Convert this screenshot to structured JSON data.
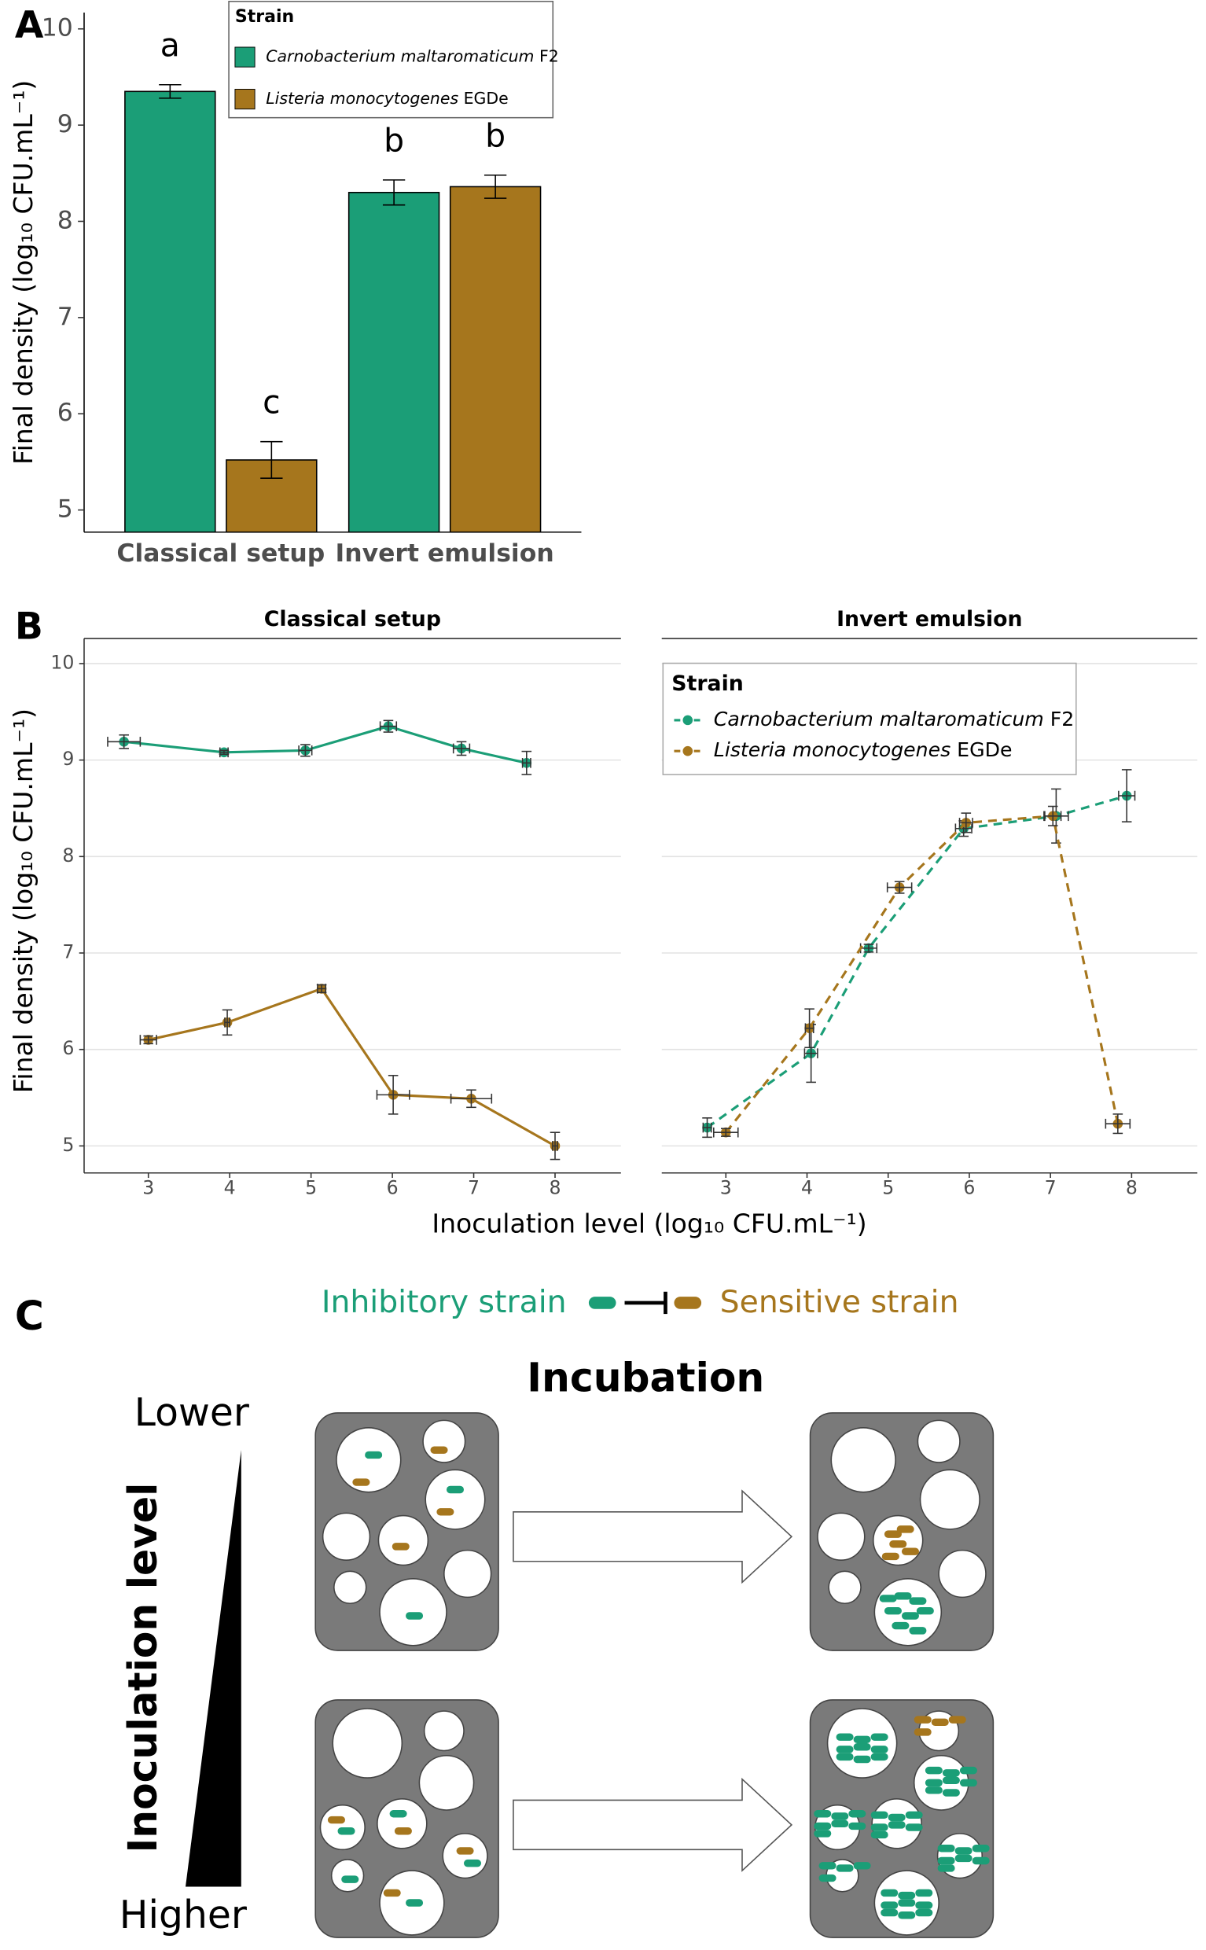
{
  "chart_data": [
    {
      "type": "bar",
      "panel_label": "A",
      "y_label": "Final density (log₁₀ CFU.mL⁻¹)",
      "categories": [
        "Classical setup",
        "Invert emulsion"
      ],
      "ylim": [
        4.77,
        10.17
      ],
      "yticks": [
        5,
        6,
        7,
        8,
        9,
        10
      ],
      "legend_title": "Strain",
      "series": [
        {
          "name": "Carnobacterium maltaromaticum F2",
          "color": "#1b9e77",
          "values": [
            9.35,
            8.3
          ],
          "errors": [
            0.07,
            0.13
          ],
          "letters": [
            "a",
            "b"
          ]
        },
        {
          "name": "Listeria monocytogenes EGDe",
          "color": "#a6761d",
          "values": [
            5.52,
            8.36
          ],
          "errors": [
            0.19,
            0.12
          ],
          "letters": [
            "c",
            "b"
          ]
        }
      ]
    },
    {
      "type": "line",
      "panel_label": "B",
      "y_label": "Final density (log₁₀ CFU.mL⁻¹)",
      "x_label": "Inoculation level (log₁₀ CFU.mL⁻¹)",
      "ylim": [
        4.72,
        10.26
      ],
      "yticks": [
        5,
        6,
        7,
        8,
        9,
        10
      ],
      "xlim": [
        2.21,
        8.81
      ],
      "xticks": [
        3,
        4,
        5,
        6,
        7,
        8
      ],
      "grid": true,
      "legend_title": "Strain",
      "series": [
        {
          "name": "Carnobacterium maltaromaticum F2",
          "color": "#1b9e77"
        },
        {
          "name": "Listeria monocytogenes EGDe",
          "color": "#a6761d"
        }
      ],
      "facets": [
        {
          "title": "Classical setup",
          "linestyle": "solid",
          "series": [
            {
              "x": [
                2.7,
                3.93,
                4.93,
                5.95,
                6.85,
                7.65
              ],
              "values": [
                9.19,
                9.08,
                9.1,
                9.35,
                9.12,
                8.97
              ],
              "xerr": [
                0.2,
                0.05,
                0.08,
                0.1,
                0.1,
                0.05
              ],
              "yerr": [
                0.07,
                0.02,
                0.06,
                0.06,
                0.07,
                0.12
              ]
            },
            {
              "x": [
                3.0,
                3.97,
                5.13,
                6.01,
                6.97,
                8.0
              ],
              "values": [
                6.1,
                6.28,
                6.63,
                5.53,
                5.49,
                5.0
              ],
              "xerr": [
                0.1,
                0.03,
                0.05,
                0.2,
                0.25,
                0.03
              ],
              "yerr": [
                0.04,
                0.13,
                0.04,
                0.2,
                0.09,
                0.14
              ]
            }
          ]
        },
        {
          "title": "Invert emulsion",
          "linestyle": "dashed",
          "series": [
            {
              "x": [
                2.77,
                4.05,
                4.76,
                5.93,
                7.07,
                7.94
              ],
              "values": [
                5.19,
                5.96,
                7.05,
                8.29,
                8.42,
                8.63
              ],
              "xerr": [
                0.05,
                0.08,
                0.1,
                0.1,
                0.15,
                0.1
              ],
              "yerr": [
                0.1,
                0.3,
                0.04,
                0.08,
                0.28,
                0.27
              ]
            },
            {
              "x": [
                3.0,
                4.03,
                5.14,
                5.96,
                7.03,
                7.83
              ],
              "values": [
                5.14,
                6.22,
                7.68,
                8.35,
                8.42,
                5.23
              ],
              "xerr": [
                0.15,
                0.05,
                0.15,
                0.08,
                0.1,
                0.15
              ],
              "yerr": [
                0.04,
                0.2,
                0.06,
                0.1,
                0.1,
                0.1
              ]
            }
          ]
        }
      ]
    }
  ],
  "diagram": {
    "panel_label": "C",
    "inhibitory": "Inhibitory strain",
    "sensitive": "Sensitive strain",
    "title": "Incubation",
    "axis_label": "Inoculation level",
    "top": "Lower",
    "bottom": "Higher"
  }
}
